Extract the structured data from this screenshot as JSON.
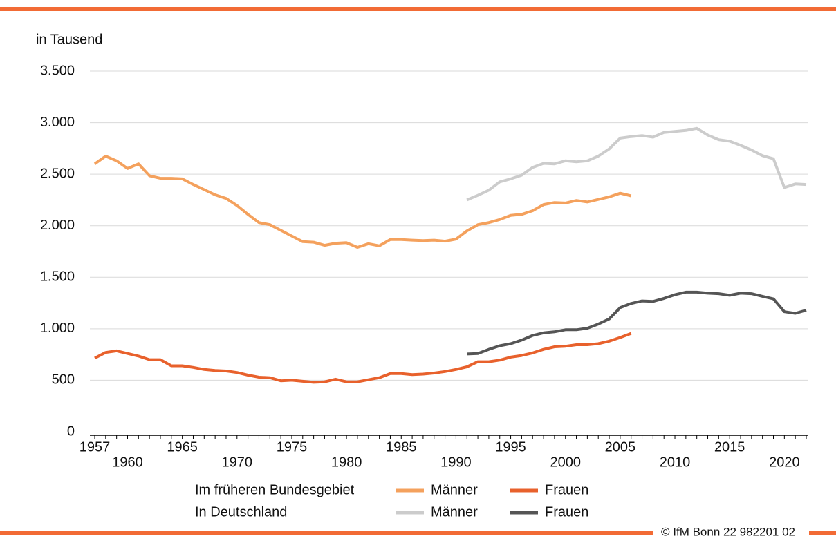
{
  "chart_data": {
    "type": "line",
    "y_label": "in Tausend",
    "footer": "© IfM Bonn 22 982201 02",
    "x": [
      1957,
      1958,
      1959,
      1960,
      1961,
      1962,
      1963,
      1964,
      1965,
      1966,
      1967,
      1968,
      1969,
      1970,
      1971,
      1972,
      1973,
      1974,
      1975,
      1976,
      1977,
      1978,
      1979,
      1980,
      1981,
      1982,
      1983,
      1984,
      1985,
      1986,
      1987,
      1988,
      1989,
      1990,
      1991,
      1992,
      1993,
      1994,
      1995,
      1996,
      1997,
      1998,
      1999,
      2000,
      2001,
      2002,
      2003,
      2004,
      2005,
      2006,
      2007,
      2008,
      2009,
      2010,
      2011,
      2012,
      2013,
      2014,
      2015,
      2016,
      2017,
      2018,
      2019,
      2020,
      2021,
      2022
    ],
    "xlim": [
      1957,
      2022
    ],
    "xticks": [
      1957,
      1960,
      1965,
      1970,
      1975,
      1980,
      1985,
      1990,
      1995,
      2000,
      2005,
      2010,
      2015,
      2020
    ],
    "ylim": [
      0,
      3500
    ],
    "yticks": [
      0,
      500,
      {
        "value": 1000,
        "label": "1.000"
      },
      {
        "value": 1500,
        "label": "1.500"
      },
      {
        "value": 2000,
        "label": "2.000"
      },
      {
        "value": 2500,
        "label": "2.500"
      },
      {
        "value": 3000,
        "label": "3.000"
      },
      {
        "value": 3500,
        "label": "3.500"
      }
    ],
    "grid": true,
    "series": [
      {
        "name": "Männer",
        "group": "Im früheren Bundesgebiet",
        "color": "#f4a15d",
        "values": [
          2600,
          2675,
          2630,
          2555,
          2600,
          2485,
          2460,
          2460,
          2455,
          2400,
          2350,
          2300,
          2265,
          2195,
          2110,
          2030,
          2010,
          1955,
          1900,
          1845,
          1840,
          1810,
          1830,
          1835,
          1790,
          1825,
          1805,
          1865,
          1865,
          1860,
          1855,
          1860,
          1850,
          1870,
          1950,
          2010,
          2030,
          2060,
          2100,
          2110,
          2145,
          2205,
          2225,
          2220,
          2245,
          2230,
          2255,
          2280,
          2315,
          2290,
          null,
          null,
          null,
          null,
          null,
          null,
          null,
          null,
          null,
          null,
          null,
          null,
          null,
          null,
          null,
          null
        ]
      },
      {
        "name": "Frauen",
        "group": "Im früheren Bundesgebiet",
        "color": "#e8612c",
        "values": [
          715,
          770,
          785,
          760,
          735,
          700,
          700,
          640,
          640,
          625,
          605,
          595,
          590,
          575,
          550,
          530,
          525,
          495,
          500,
          490,
          480,
          485,
          510,
          485,
          485,
          505,
          525,
          565,
          565,
          555,
          560,
          570,
          585,
          605,
          630,
          680,
          680,
          695,
          725,
          740,
          765,
          800,
          825,
          830,
          845,
          845,
          855,
          880,
          915,
          955,
          null,
          null,
          null,
          null,
          null,
          null,
          null,
          null,
          null,
          null,
          null,
          null,
          null,
          null,
          null,
          null
        ]
      },
      {
        "name": "Männer",
        "group": "In Deutschland",
        "color": "#cccccc",
        "values": [
          null,
          null,
          null,
          null,
          null,
          null,
          null,
          null,
          null,
          null,
          null,
          null,
          null,
          null,
          null,
          null,
          null,
          null,
          null,
          null,
          null,
          null,
          null,
          null,
          null,
          null,
          null,
          null,
          null,
          null,
          null,
          null,
          null,
          null,
          2250,
          2295,
          2345,
          2425,
          2455,
          2490,
          2565,
          2605,
          2600,
          2630,
          2620,
          2630,
          2675,
          2745,
          2850,
          2865,
          2875,
          2860,
          2905,
          2915,
          2925,
          2945,
          2880,
          2835,
          2820,
          2780,
          2735,
          2680,
          2650,
          2370,
          2405,
          2400
        ]
      },
      {
        "name": "Frauen",
        "group": "In Deutschland",
        "color": "#555555",
        "values": [
          null,
          null,
          null,
          null,
          null,
          null,
          null,
          null,
          null,
          null,
          null,
          null,
          null,
          null,
          null,
          null,
          null,
          null,
          null,
          null,
          null,
          null,
          null,
          null,
          null,
          null,
          null,
          null,
          null,
          null,
          null,
          null,
          null,
          null,
          755,
          760,
          800,
          835,
          855,
          890,
          935,
          960,
          970,
          990,
          990,
          1005,
          1045,
          1095,
          1205,
          1245,
          1270,
          1265,
          1295,
          1330,
          1355,
          1355,
          1345,
          1340,
          1325,
          1345,
          1340,
          1315,
          1290,
          1165,
          1150,
          1180
        ]
      }
    ]
  }
}
